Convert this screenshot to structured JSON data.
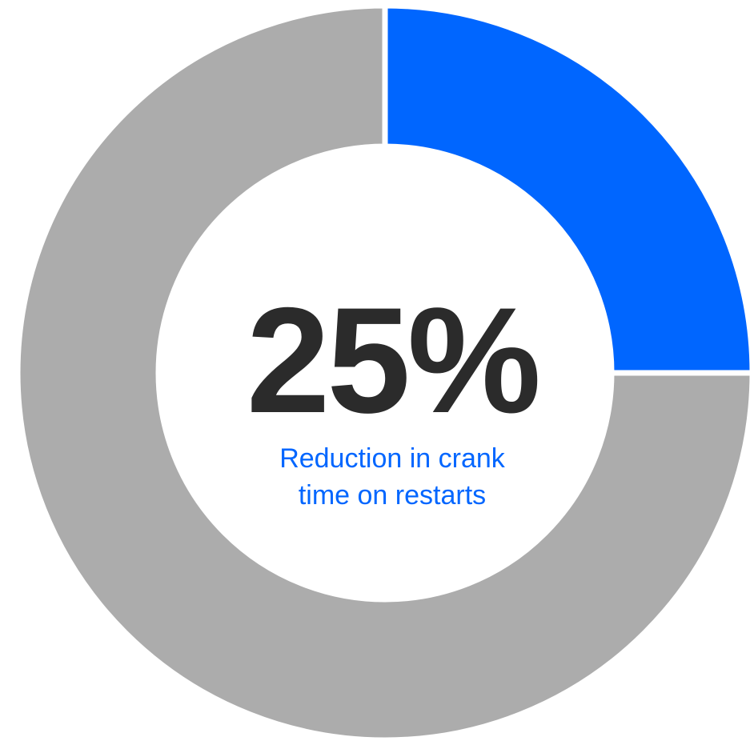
{
  "chart_data": {
    "type": "pie",
    "style": "donut",
    "slices": [
      {
        "value": 25,
        "color": "#0066ff"
      },
      {
        "value": 75,
        "color": "#acacac"
      }
    ],
    "center_value": "25%",
    "caption_lines": [
      "Reduction in crank",
      "time on restarts"
    ],
    "title": "",
    "legend": "none"
  },
  "colors": {
    "highlight": "#0066ff",
    "remainder": "#acacac",
    "value_text": "#2b2b2b",
    "caption_text": "#0066ff",
    "separator": "#ffffff"
  }
}
